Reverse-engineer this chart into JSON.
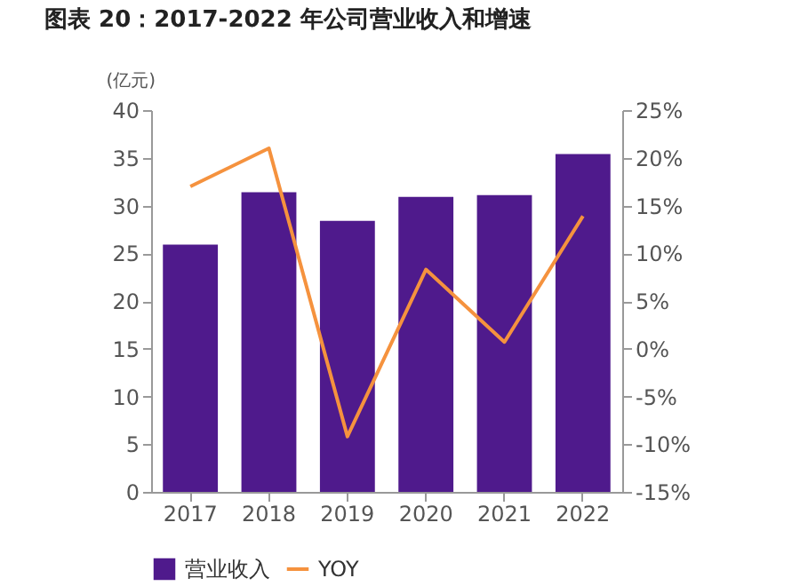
{
  "chart_data": {
    "type": "bar",
    "title": "图表 20：2017-2022 年公司营业收入和增速",
    "ylabel": "(亿元)",
    "categories": [
      "2017",
      "2018",
      "2019",
      "2020",
      "2021",
      "2022"
    ],
    "series": [
      {
        "name": "营业收入",
        "color": "#4f1a8c",
        "values": [
          25.9,
          31.4,
          28.4,
          30.9,
          31.1,
          35.4
        ]
      },
      {
        "name": "YOY",
        "type": "line",
        "axis": "y2",
        "color": "#f5923e",
        "values": [
          17.0,
          21.0,
          -9.2,
          8.3,
          0.7,
          13.9
        ]
      }
    ],
    "ylim": [
      0,
      40
    ],
    "yticks": [
      0,
      5,
      10,
      15,
      20,
      25,
      30,
      35,
      40
    ],
    "y2lim": [
      -15,
      25
    ],
    "y2ticks": [
      {
        "value": -15,
        "label": "-15%"
      },
      {
        "value": -10,
        "label": "-10%"
      },
      {
        "value": -5,
        "label": "-5%"
      },
      {
        "value": 0,
        "label": "0%"
      },
      {
        "value": 5,
        "label": "5%"
      },
      {
        "value": 10,
        "label": "10%"
      },
      {
        "value": 15,
        "label": "15%"
      },
      {
        "value": 20,
        "label": "20%"
      },
      {
        "value": 25,
        "label": "25%"
      }
    ],
    "grid": false,
    "legend": "bottom",
    "marker": "none",
    "line_style": "solid"
  }
}
